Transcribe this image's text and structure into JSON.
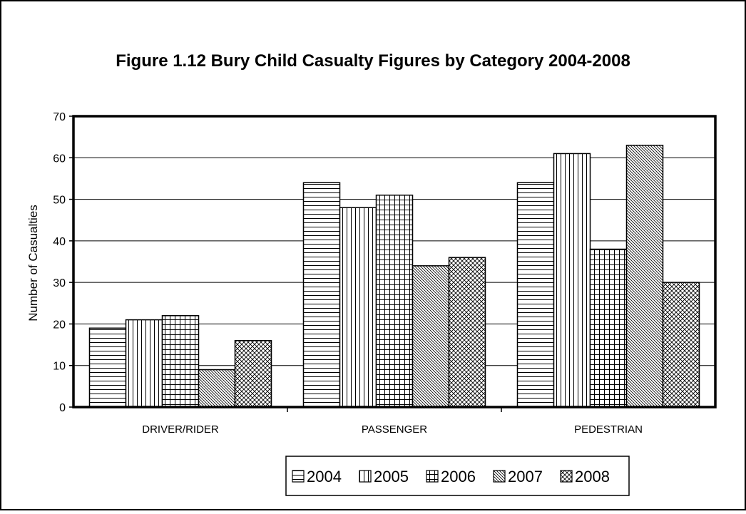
{
  "chart_data": {
    "type": "bar",
    "title": "Figure 1.12 Bury Child Casualty Figures by Category 2004-2008",
    "xlabel": "",
    "ylabel": "Number of Casualties",
    "categories": [
      "DRIVER/RIDER",
      "PASSENGER",
      "PEDESTRIAN"
    ],
    "series": [
      {
        "name": "2004",
        "values": [
          19,
          54,
          54
        ]
      },
      {
        "name": "2005",
        "values": [
          21,
          48,
          61
        ]
      },
      {
        "name": "2006",
        "values": [
          22,
          51,
          38
        ]
      },
      {
        "name": "2007",
        "values": [
          9,
          34,
          63
        ]
      },
      {
        "name": "2008",
        "values": [
          16,
          36,
          30
        ]
      }
    ],
    "ylim": [
      0,
      70
    ],
    "yticks": [
      0,
      10,
      20,
      30,
      40,
      50,
      60,
      70
    ],
    "grid": true,
    "legend_position": "bottom"
  }
}
